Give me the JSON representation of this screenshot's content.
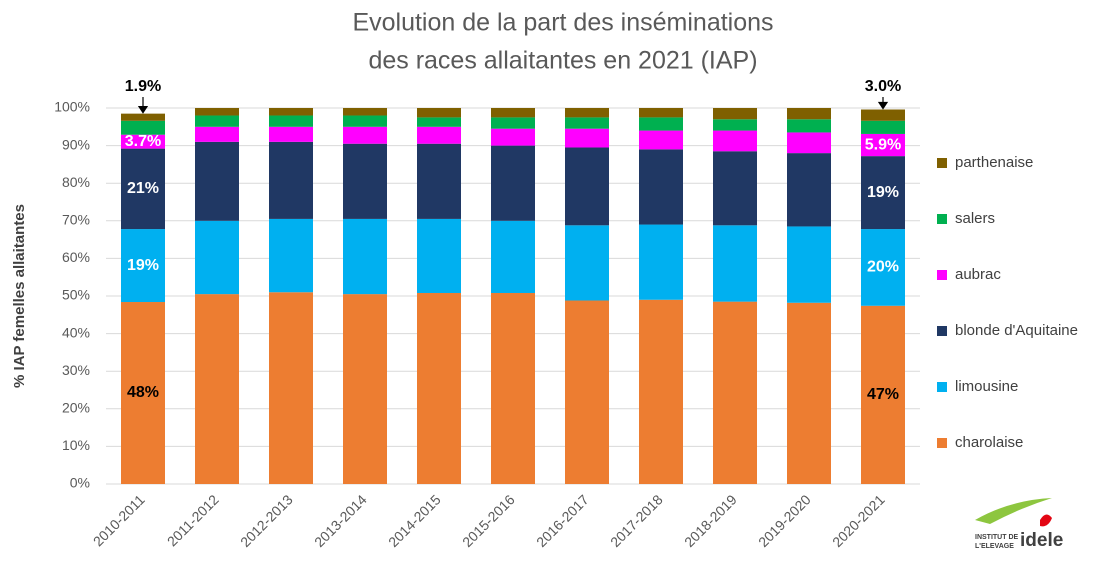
{
  "chart_data": {
    "type": "stacked_bar",
    "title": [
      "Evolution de la part des inséminations",
      "des races allaitantes en 2021 (IAP)"
    ],
    "y_label": "% IAP femelles allaitantes",
    "categories": [
      "2010-2011",
      "2011-2012",
      "2012-2013",
      "2013-2014",
      "2014-2015",
      "2015-2016",
      "2016-2017",
      "2017-2018",
      "2018-2019",
      "2019-2020",
      "2020-2021"
    ],
    "series": [
      {
        "name": "charolaise",
        "color": "#ed7d31",
        "values": [
          48.4,
          50.5,
          51,
          50.5,
          50.8,
          50.8,
          48.8,
          49,
          48.5,
          48.2,
          47.4
        ],
        "value_labels": [
          "48%",
          null,
          null,
          null,
          null,
          null,
          null,
          null,
          null,
          null,
          "47%"
        ]
      },
      {
        "name": "limousine",
        "color": "#00b0f0",
        "values": [
          19.4,
          19.5,
          19.5,
          20,
          19.7,
          19.2,
          20,
          20,
          20.3,
          20.3,
          20.4
        ],
        "value_labels": [
          "19%",
          null,
          null,
          null,
          null,
          null,
          null,
          null,
          null,
          null,
          "20%"
        ]
      },
      {
        "name": "blonde d'Aquitaine",
        "color": "#203864",
        "values": [
          21.4,
          21,
          20.5,
          20,
          20,
          20,
          20.7,
          20,
          19.7,
          19.5,
          19.4
        ],
        "value_labels": [
          "21%",
          null,
          null,
          null,
          null,
          null,
          null,
          null,
          null,
          null,
          "19%"
        ]
      },
      {
        "name": "aubrac",
        "color": "#ff00ff",
        "values": [
          3.7,
          4,
          4,
          4.5,
          4.5,
          4.5,
          5,
          5,
          5.5,
          5.5,
          5.9
        ],
        "value_labels": [
          "3.7%",
          null,
          null,
          null,
          null,
          null,
          null,
          null,
          null,
          null,
          "5.9%"
        ]
      },
      {
        "name": "salers",
        "color": "#00b050",
        "values": [
          3.7,
          3,
          3,
          3,
          2.5,
          3,
          3,
          3.5,
          3,
          3.5,
          3.5
        ]
      },
      {
        "name": "parthenaise",
        "color": "#7f6000",
        "values": [
          1.9,
          2,
          2,
          2,
          2.5,
          2.5,
          2.5,
          2.5,
          3,
          3,
          3.0
        ],
        "value_labels": [
          "1.9%",
          null,
          null,
          null,
          null,
          null,
          null,
          null,
          null,
          null,
          "3.0%"
        ],
        "label_position": "above"
      }
    ],
    "ylim": [
      0,
      100
    ],
    "yticks": [
      {
        "value": 0,
        "label": "0%"
      },
      {
        "value": 10,
        "label": "10%"
      },
      {
        "value": 20,
        "label": "20%"
      },
      {
        "value": 30,
        "label": "30%"
      },
      {
        "value": 40,
        "label": "40%"
      },
      {
        "value": 50,
        "label": "50%"
      },
      {
        "value": 60,
        "label": "60%"
      },
      {
        "value": 70,
        "label": "70%"
      },
      {
        "value": 80,
        "label": "80%"
      },
      {
        "value": 90,
        "label": "90%"
      },
      {
        "value": 100,
        "label": "100%"
      }
    ],
    "grid": true,
    "legend": "right",
    "logo": {
      "line1": "INSTITUT DE",
      "line2": "L'ELEVAGE",
      "name": "idele"
    }
  }
}
